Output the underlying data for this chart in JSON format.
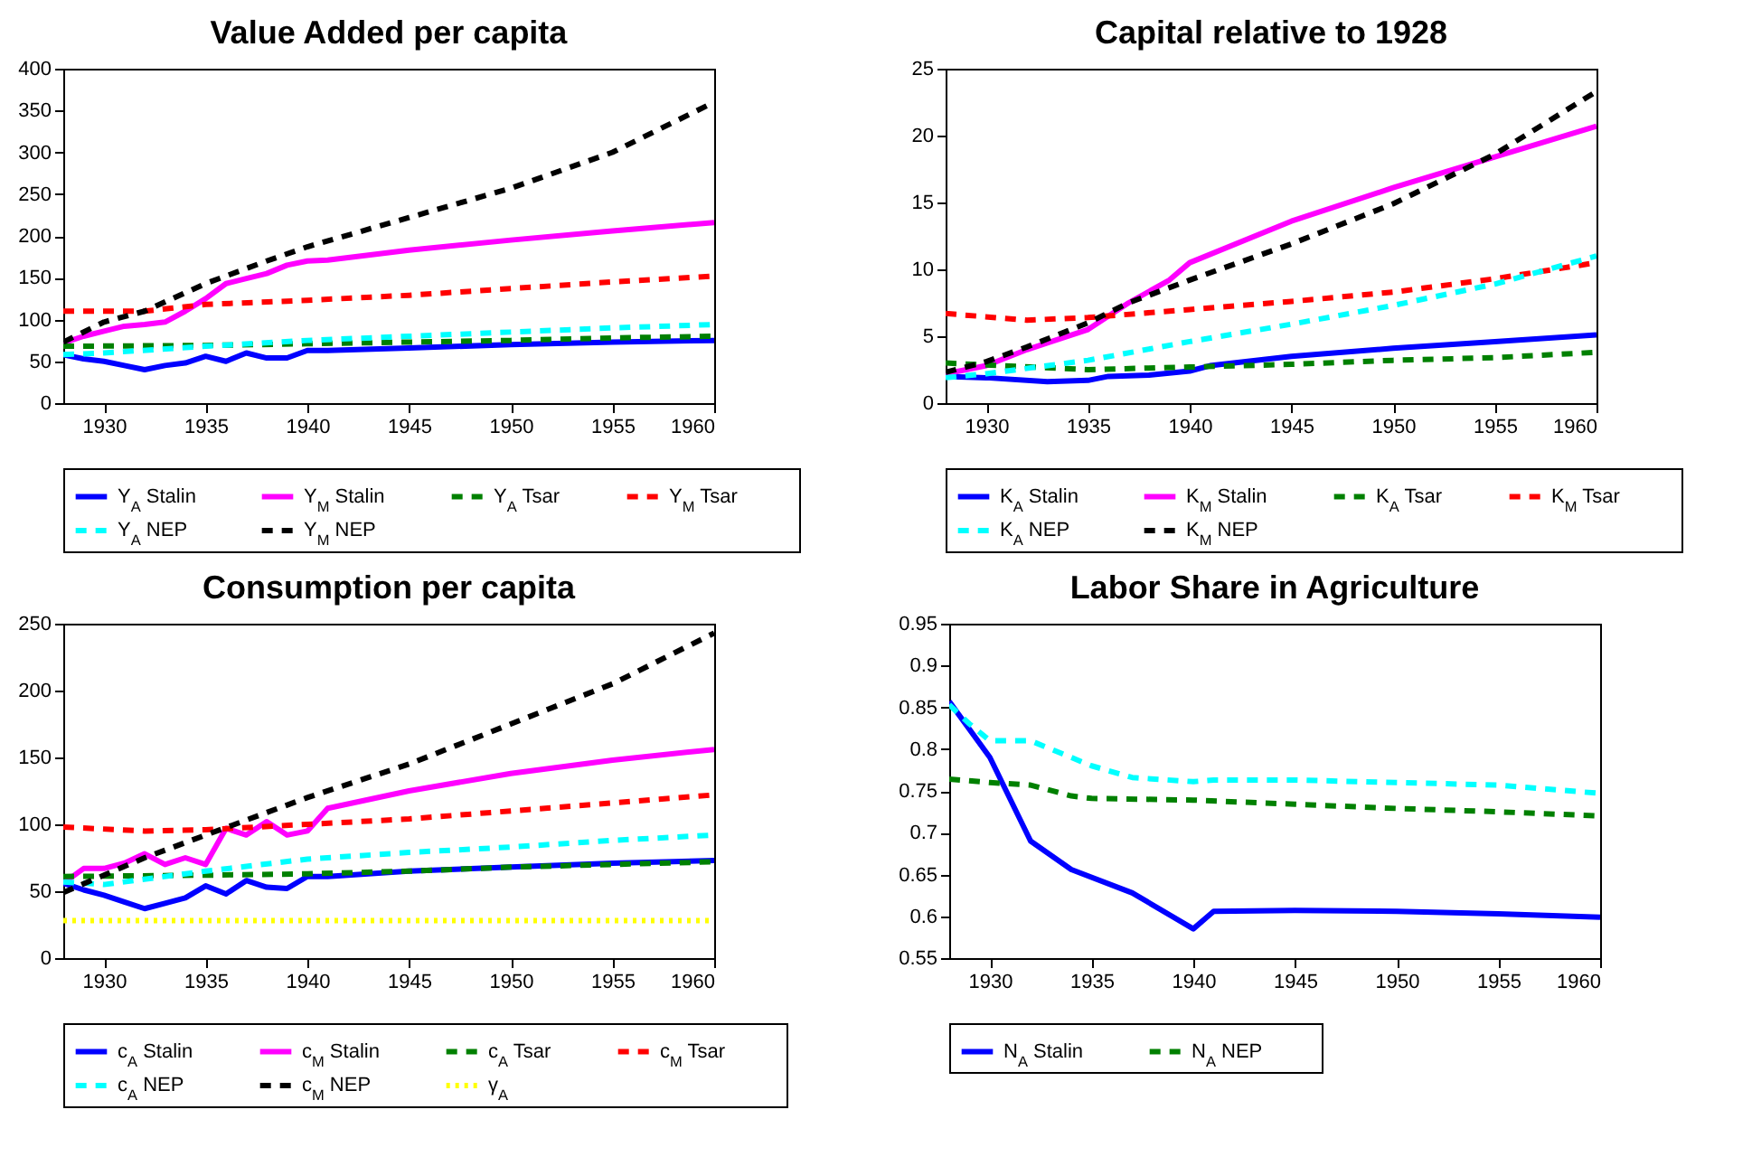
{
  "chart_data": [
    {
      "type": "line",
      "title": "Value Added per capita",
      "xlim": [
        1928,
        1960
      ],
      "xticks": [
        1930,
        1935,
        1940,
        1945,
        1950,
        1955,
        1960
      ],
      "ylim": [
        0,
        400
      ],
      "yticks": [
        0,
        50,
        100,
        150,
        200,
        250,
        300,
        350,
        400
      ],
      "grid": false,
      "legend": "bottom",
      "marker": "none",
      "series": [
        {
          "name": "Y$_{A}$ Stalin",
          "color": "#0000ff",
          "line_style": "solid",
          "x": [
            1928,
            1929,
            1930,
            1931,
            1932,
            1933,
            1934,
            1935,
            1936,
            1937,
            1938,
            1939,
            1940,
            1941,
            1945,
            1950,
            1955,
            1960
          ],
          "values": [
            58,
            53,
            50,
            45,
            40,
            45,
            48,
            56,
            50,
            60,
            54,
            54,
            63,
            63,
            66,
            70,
            73,
            75
          ]
        },
        {
          "name": "Y$_{M}$ Stalin",
          "color": "#ff00ff",
          "line_style": "solid",
          "x": [
            1928,
            1929,
            1930,
            1931,
            1932,
            1933,
            1934,
            1935,
            1936,
            1937,
            1938,
            1939,
            1940,
            1941,
            1945,
            1950,
            1955,
            1960
          ],
          "values": [
            72,
            80,
            86,
            92,
            94,
            97,
            110,
            125,
            143,
            149,
            155,
            165,
            170,
            171,
            183,
            195,
            206,
            216
          ]
        },
        {
          "name": "Y$_{A}$ Tsar",
          "color": "#008000",
          "line_style": "dashed",
          "x": [
            1928,
            1935,
            1940,
            1945,
            1950,
            1955,
            1960
          ],
          "values": [
            68,
            69,
            71,
            73,
            75,
            78,
            80
          ]
        },
        {
          "name": "Y$_{M}$ Tsar",
          "color": "#ff0000",
          "line_style": "dashed",
          "x": [
            1928,
            1932,
            1935,
            1940,
            1945,
            1950,
            1955,
            1960
          ],
          "values": [
            110,
            110,
            118,
            123,
            129,
            137,
            145,
            152
          ]
        },
        {
          "name": "Y$_{A}$ NEP",
          "color": "#00ffff",
          "line_style": "dashed",
          "x": [
            1928,
            1930,
            1935,
            1940,
            1945,
            1950,
            1955,
            1960
          ],
          "values": [
            58,
            60,
            68,
            75,
            80,
            85,
            90,
            94
          ]
        },
        {
          "name": "Y$_{M}$ NEP",
          "color": "#000000",
          "line_style": "dashed",
          "x": [
            1928,
            1930,
            1932,
            1935,
            1938,
            1940,
            1945,
            1950,
            1955,
            1960
          ],
          "values": [
            73,
            97,
            110,
            143,
            170,
            187,
            222,
            257,
            300,
            360
          ]
        }
      ]
    },
    {
      "type": "line",
      "title": "Capital relative to 1928",
      "xlim": [
        1928,
        1960
      ],
      "xticks": [
        1930,
        1935,
        1940,
        1945,
        1950,
        1955,
        1960
      ],
      "ylim": [
        0,
        25
      ],
      "yticks": [
        0,
        5,
        10,
        15,
        20,
        25
      ],
      "grid": false,
      "legend": "bottom",
      "marker": "none",
      "series": [
        {
          "name": "K$_{A}$ Stalin",
          "color": "#0000ff",
          "line_style": "solid",
          "x": [
            1928,
            1930,
            1933,
            1935,
            1936,
            1938,
            1940,
            1941,
            1945,
            1950,
            1955,
            1960
          ],
          "values": [
            2,
            1.9,
            1.6,
            1.7,
            2.0,
            2.1,
            2.4,
            2.8,
            3.5,
            4.1,
            4.6,
            5.1
          ]
        },
        {
          "name": "K$_{M}$ Stalin",
          "color": "#ff00ff",
          "line_style": "solid",
          "x": [
            1928,
            1930,
            1932,
            1933,
            1935,
            1937,
            1939,
            1940,
            1945,
            1950,
            1955,
            1960
          ],
          "values": [
            2.2,
            2.8,
            4.0,
            4.5,
            5.5,
            7.5,
            9.2,
            10.5,
            13.6,
            16.1,
            18.4,
            20.7
          ]
        },
        {
          "name": "K$_{A}$ Tsar",
          "color": "#008000",
          "line_style": "dashed",
          "x": [
            1928,
            1935,
            1940,
            1945,
            1950,
            1955,
            1960
          ],
          "values": [
            3.0,
            2.5,
            2.7,
            2.9,
            3.2,
            3.4,
            3.8
          ]
        },
        {
          "name": "K$_{M}$ Tsar",
          "color": "#ff0000",
          "line_style": "dashed",
          "x": [
            1928,
            1932,
            1935,
            1940,
            1945,
            1950,
            1955,
            1960
          ],
          "values": [
            6.7,
            6.2,
            6.4,
            7.0,
            7.6,
            8.3,
            9.3,
            10.5
          ]
        },
        {
          "name": "K$_{A}$ NEP",
          "color": "#00ffff",
          "line_style": "dashed",
          "x": [
            1928,
            1930,
            1935,
            1940,
            1945,
            1950,
            1955,
            1960
          ],
          "values": [
            1.9,
            2.2,
            3.2,
            4.6,
            5.9,
            7.3,
            8.9,
            11.0
          ]
        },
        {
          "name": "K$_{M}$ NEP",
          "color": "#000000",
          "line_style": "dashed",
          "x": [
            1928,
            1930,
            1932,
            1935,
            1937,
            1940,
            1945,
            1950,
            1955,
            1960
          ],
          "values": [
            2.3,
            3.1,
            4.2,
            6.0,
            7.5,
            9.2,
            11.9,
            14.9,
            18.6,
            23.3
          ]
        }
      ]
    },
    {
      "type": "line",
      "title": "Consumption per capita",
      "xlim": [
        1928,
        1960
      ],
      "xticks": [
        1930,
        1935,
        1940,
        1945,
        1950,
        1955,
        1960
      ],
      "ylim": [
        0,
        250
      ],
      "yticks": [
        0,
        50,
        100,
        150,
        200,
        250
      ],
      "grid": false,
      "legend": "bottom",
      "marker": "none",
      "series": [
        {
          "name": "c$_{A}$ Stalin",
          "color": "#0000ff",
          "line_style": "solid",
          "x": [
            1928,
            1929,
            1930,
            1931,
            1932,
            1933,
            1934,
            1935,
            1936,
            1937,
            1938,
            1939,
            1940,
            1941,
            1945,
            1950,
            1955,
            1960
          ],
          "values": [
            56,
            51,
            47,
            42,
            37,
            41,
            45,
            54,
            48,
            58,
            53,
            52,
            61,
            61,
            65,
            68,
            71,
            73
          ]
        },
        {
          "name": "c$_{M}$ Stalin",
          "color": "#ff00ff",
          "line_style": "solid",
          "x": [
            1928,
            1929,
            1930,
            1931,
            1932,
            1933,
            1934,
            1935,
            1936,
            1937,
            1938,
            1939,
            1940,
            1941,
            1945,
            1950,
            1955,
            1960
          ],
          "values": [
            56,
            67,
            67,
            71,
            78,
            70,
            75,
            70,
            97,
            92,
            102,
            92,
            95,
            112,
            125,
            138,
            148,
            156
          ]
        },
        {
          "name": "c$_{A}$ Tsar",
          "color": "#008000",
          "line_style": "dashed",
          "x": [
            1928,
            1935,
            1940,
            1945,
            1950,
            1955,
            1960
          ],
          "values": [
            61,
            62,
            63,
            65,
            68,
            70,
            72
          ]
        },
        {
          "name": "c$_{M}$ Tsar",
          "color": "#ff0000",
          "line_style": "dashed",
          "x": [
            1928,
            1932,
            1935,
            1940,
            1945,
            1950,
            1955,
            1960
          ],
          "values": [
            98,
            95,
            96,
            100,
            104,
            110,
            116,
            122
          ]
        },
        {
          "name": "c$_{A}$ NEP",
          "color": "#00ffff",
          "line_style": "dashed",
          "x": [
            1928,
            1930,
            1935,
            1940,
            1945,
            1950,
            1955,
            1960
          ],
          "values": [
            57,
            55,
            65,
            74,
            79,
            83,
            88,
            92
          ]
        },
        {
          "name": "c$_{M}$ NEP",
          "color": "#000000",
          "line_style": "dashed",
          "x": [
            1928,
            1930,
            1932,
            1935,
            1940,
            1945,
            1950,
            1955,
            1960
          ],
          "values": [
            49,
            62,
            75,
            92,
            120,
            145,
            175,
            205,
            243
          ]
        },
        {
          "name": "γ$_{A}$",
          "color": "#ffff00",
          "line_style": "dotted",
          "x": [
            1928,
            1960
          ],
          "values": [
            28,
            28
          ]
        }
      ]
    },
    {
      "type": "line",
      "title": "Labor Share in Agriculture",
      "xlim": [
        1928,
        1960
      ],
      "xticks": [
        1930,
        1935,
        1940,
        1945,
        1950,
        1955,
        1960
      ],
      "ylim": [
        0.55,
        0.95
      ],
      "yticks": [
        0.55,
        0.6,
        0.65,
        0.7,
        0.75,
        0.8,
        0.85,
        0.9,
        0.95
      ],
      "grid": false,
      "legend": "bottom",
      "marker": "none",
      "series": [
        {
          "name": "N$_{A}$ Stalin",
          "color": "#0000ff",
          "line_style": "solid",
          "x": [
            1928,
            1930,
            1932,
            1934,
            1937,
            1940,
            1941,
            1945,
            1950,
            1955,
            1960
          ],
          "values": [
            0.857,
            0.79,
            0.69,
            0.656,
            0.628,
            0.585,
            0.606,
            0.607,
            0.606,
            0.603,
            0.599
          ]
        },
        {
          "name": "N$_{A}$ NEP",
          "color": "#008000",
          "line_style": "dashed",
          "x": [
            1928,
            1930,
            1932,
            1934,
            1935,
            1940,
            1945,
            1950,
            1955,
            1960
          ],
          "values": [
            0.764,
            0.76,
            0.757,
            0.744,
            0.741,
            0.739,
            0.734,
            0.729,
            0.725,
            0.72
          ]
        },
        {
          "color": "#00ffff",
          "line_style": "dashed",
          "x": [
            1928,
            1929,
            1930,
            1932,
            1934,
            1935,
            1937,
            1940,
            1941,
            1945,
            1950,
            1955,
            1960
          ],
          "values": [
            0.853,
            0.83,
            0.81,
            0.81,
            0.79,
            0.78,
            0.766,
            0.761,
            0.763,
            0.763,
            0.76,
            0.757,
            0.747
          ]
        }
      ]
    }
  ]
}
